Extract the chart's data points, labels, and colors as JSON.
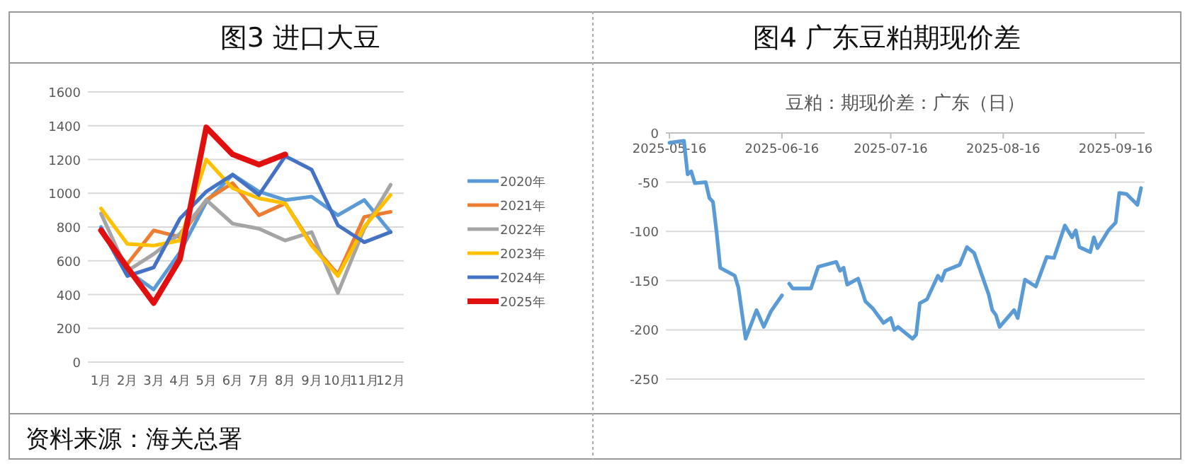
{
  "chart_data": [
    {
      "type": "line",
      "title": "图3 进口大豆",
      "categories": [
        "1月",
        "2月",
        "3月",
        "4月",
        "5月",
        "6月",
        "7月",
        "8月",
        "9月",
        "10月",
        "11月",
        "12月"
      ],
      "ylim": [
        0,
        1600
      ],
      "yticks": [
        0,
        200,
        400,
        600,
        800,
        1000,
        1200,
        1400,
        1600
      ],
      "grid": "y",
      "legend": "right",
      "marker": "none",
      "line_style": "solid",
      "annotations": [
        "资料来源：海关总署"
      ],
      "series": [
        {
          "name": "2020年",
          "color": "#5b9bd5",
          "values": [
            800,
            540,
            430,
            650,
            950,
            1110,
            1010,
            960,
            980,
            870,
            960,
            770
          ]
        },
        {
          "name": "2021年",
          "color": "#ed7d31",
          "values": [
            null,
            580,
            780,
            740,
            960,
            1060,
            870,
            940,
            700,
            520,
            860,
            890
          ]
        },
        {
          "name": "2022年",
          "color": "#a5a5a5",
          "values": [
            880,
            540,
            640,
            760,
            960,
            820,
            790,
            720,
            770,
            410,
            790,
            1050
          ]
        },
        {
          "name": "2023年",
          "color": "#ffc000",
          "values": [
            910,
            700,
            690,
            720,
            1200,
            1030,
            970,
            940,
            690,
            510,
            800,
            990
          ]
        },
        {
          "name": "2024年",
          "color": "#4472c4",
          "values": [
            790,
            510,
            560,
            850,
            1010,
            1110,
            990,
            1220,
            1140,
            810,
            710,
            770
          ]
        },
        {
          "name": "2025年",
          "color": "#e01010",
          "values": [
            780,
            560,
            350,
            610,
            1390,
            1230,
            1170,
            1230,
            null,
            null,
            null,
            null
          ]
        }
      ]
    },
    {
      "type": "line",
      "title": "图4 广东豆粕期现价差",
      "subtitle": "豆粕：期现价差：广东（日）",
      "xlim": [
        "2025-05-15",
        "2025-09-24"
      ],
      "xticks": [
        "2025-05-16",
        "2025-06-16",
        "2025-07-16",
        "2025-08-16",
        "2025-09-16"
      ],
      "ylim": [
        -250,
        0
      ],
      "yticks": [
        -250,
        -200,
        -150,
        -100,
        -50,
        0
      ],
      "grid": "y",
      "marker": "none",
      "line_style": "solid",
      "x": [
        "2025-05-16",
        "2025-05-20",
        "2025-05-21",
        "2025-05-22",
        "2025-05-23",
        "2025-05-26",
        "2025-05-27",
        "2025-05-28",
        "2025-05-29",
        "2025-05-30",
        "2025-06-03",
        "2025-06-04",
        "2025-06-06",
        "2025-06-09",
        "2025-06-11",
        "2025-06-13",
        "2025-06-16",
        "2025-06-17",
        "2025-06-18",
        "2025-06-19",
        "2025-06-24",
        "2025-06-26",
        "2025-07-01",
        "2025-07-02",
        "2025-07-03",
        "2025-07-04",
        "2025-07-07",
        "2025-07-09",
        "2025-07-11",
        "2025-07-14",
        "2025-07-16",
        "2025-07-17",
        "2025-07-18",
        "2025-07-22",
        "2025-07-23",
        "2025-07-24",
        "2025-07-26",
        "2025-07-29",
        "2025-07-30",
        "2025-07-31",
        "2025-08-04",
        "2025-08-06",
        "2025-08-08",
        "2025-08-12",
        "2025-08-13",
        "2025-08-14",
        "2025-08-15",
        "2025-08-19",
        "2025-08-20",
        "2025-08-22",
        "2025-08-25",
        "2025-08-28",
        "2025-08-30",
        "2025-09-02",
        "2025-09-04",
        "2025-09-05",
        "2025-09-06",
        "2025-09-09",
        "2025-09-10",
        "2025-09-11",
        "2025-09-14",
        "2025-09-16",
        "2025-09-17",
        "2025-09-19",
        "2025-09-22",
        "2025-09-23"
      ],
      "series": [
        {
          "color": "#5b9bd5",
          "values": [
            -10,
            -8,
            -42,
            -39,
            -51,
            -50,
            -66,
            -70,
            -101,
            -137,
            -145,
            -157,
            -209,
            -180,
            -197,
            -181,
            -165,
            null,
            -153,
            -158,
            -158,
            -136,
            -131,
            -140,
            -137,
            -154,
            -148,
            -171,
            -178,
            -193,
            -188,
            -200,
            -197,
            -209,
            -205,
            -173,
            -169,
            -145,
            -150,
            -140,
            -134,
            -116,
            -122,
            -164,
            -180,
            -185,
            -197,
            -180,
            -188,
            -149,
            -156,
            -126,
            -127,
            -94,
            -106,
            -99,
            -116,
            -121,
            -106,
            -117,
            -99,
            -91,
            -61,
            -62,
            -73,
            -56
          ]
        }
      ]
    }
  ]
}
